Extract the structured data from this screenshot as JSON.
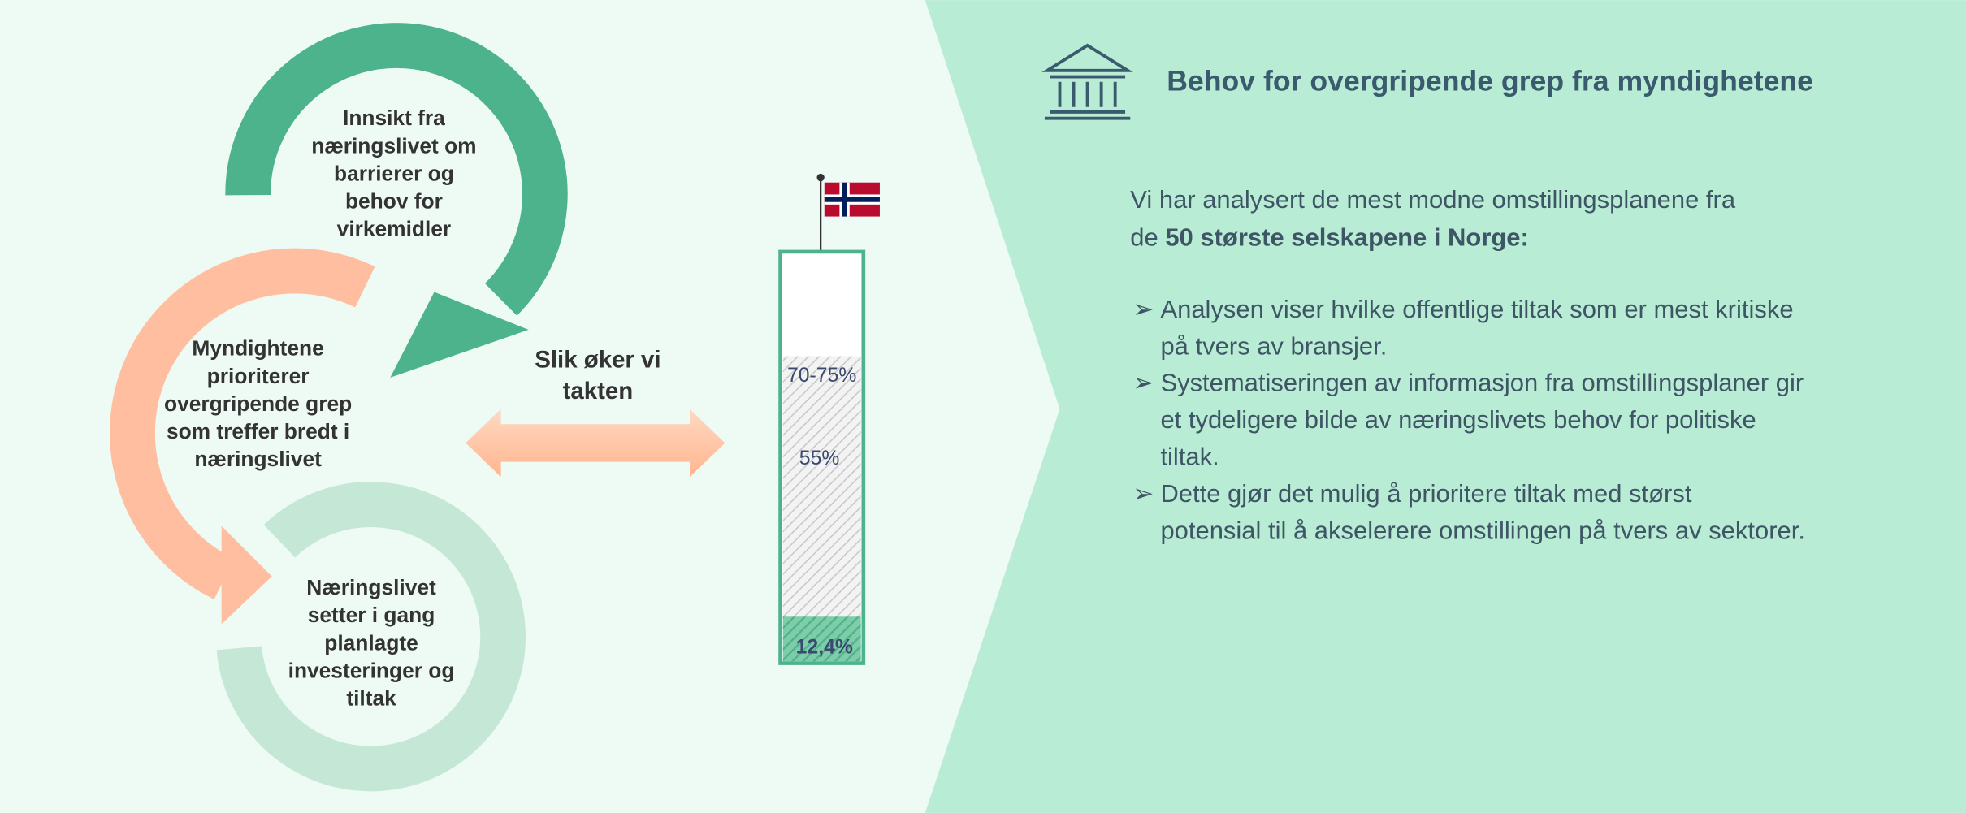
{
  "cycle": [
    {
      "lines": [
        "Innsikt fra",
        "næringslivet om",
        "barrierer og",
        "behov for",
        "virkemidler"
      ]
    },
    {
      "lines": [
        "Myndightene",
        "prioriterer",
        "overgripende grep",
        "som treffer bredt i",
        "næringslivet"
      ]
    },
    {
      "lines": [
        "Næringslivet",
        "setter i gang",
        "planlagte",
        "investeringer og",
        "tiltak"
      ]
    }
  ],
  "center_label": [
    "Slik øker vi",
    "takten"
  ],
  "gauge_labels": [
    "70-75%",
    "55%",
    "12,4%"
  ],
  "panel": {
    "title": "Behov for overgripende grep fra myndighetene",
    "intro": {
      "line1": "Vi har analysert de mest modne omstillingsplanene fra",
      "line2_prefix": "de",
      "line2_bold": "50 største selskapene i Norge:"
    },
    "bullets": [
      [
        "Analysen viser hvilke offentlige tiltak som er mest kritiske",
        "på tvers av bransjer."
      ],
      [
        "Systematiseringen av informasjon fra omstillingsplaner gir",
        "et tydeligere bilde av næringslivets behov for politiske",
        "tiltak."
      ],
      [
        "Dette gjør det mulig å prioritere tiltak med størst",
        "potensial til å akselerere omstillingen på tvers av sektorer."
      ]
    ]
  }
}
